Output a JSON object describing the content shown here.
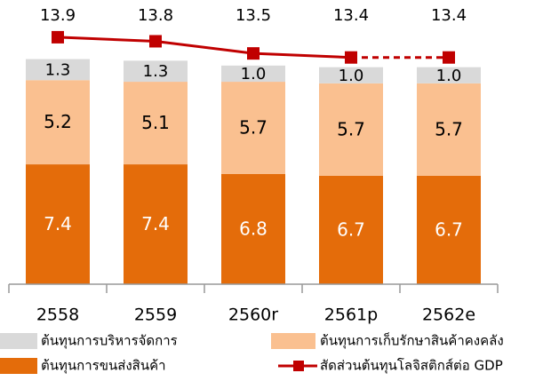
{
  "chart_data": {
    "type": "bar",
    "stacked": true,
    "categories": [
      "2558",
      "2559",
      "2560r",
      "2561p",
      "2562e"
    ],
    "series": [
      {
        "name": "ต้นทุนการขนส่งสินค้า",
        "color": "#e46c0a",
        "values": [
          7.4,
          7.4,
          6.8,
          6.7,
          6.7
        ]
      },
      {
        "name": "ต้นทุนการเก็บรักษาสินค้าคงคลัง",
        "color": "#fac090",
        "values": [
          5.2,
          5.1,
          5.7,
          5.7,
          5.7
        ]
      },
      {
        "name": "ต้นทุนการบริหารจัดการ",
        "color": "#d9d9d9",
        "values": [
          1.3,
          1.3,
          1.0,
          1.0,
          1.0
        ],
        "value_labels": [
          "1.3",
          "1.3",
          "1.0",
          "1.0",
          "1.0"
        ]
      },
      {
        "name": "สัดส่วนต้นทุนโลจิสติกส์ต่อ GDP",
        "color": "#c00000",
        "type": "line",
        "axis": "y2",
        "values": [
          13.9,
          13.8,
          13.5,
          13.4,
          13.4
        ],
        "dash_from": "2561p"
      }
    ],
    "ylim": [
      0,
      17
    ],
    "y2lim": [
      7.8,
      14.6
    ]
  }
}
